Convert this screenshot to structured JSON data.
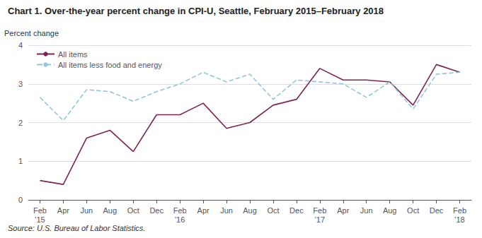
{
  "chart_data": {
    "type": "line",
    "title": "Chart 1. Over-the-year percent change in CPI-U, Seattle, February 2015–February 2018",
    "ylabel": "Percent change",
    "annotations": [
      "Source: U.S. Bureau of Labor Statistics."
    ],
    "categories": [
      "Feb\n'15",
      "Apr",
      "Jun",
      "Aug",
      "Oct",
      "Dec",
      "Feb\n'16",
      "Apr",
      "Jun",
      "Aug",
      "Oct",
      "Dec",
      "Feb\n'17",
      "Apr",
      "Jun",
      "Aug",
      "Oct",
      "Dec",
      "Feb\n'18"
    ],
    "series": [
      {
        "name": "All items",
        "color": "#7b2452",
        "line_style": "solid",
        "values": [
          0.5,
          0.4,
          1.6,
          1.8,
          1.25,
          2.2,
          2.2,
          2.5,
          1.85,
          2.0,
          2.45,
          2.6,
          3.4,
          3.1,
          3.1,
          3.05,
          2.45,
          3.5,
          3.3
        ]
      },
      {
        "name": "All items less food and energy",
        "color": "#92c5de",
        "line_style": "dashed",
        "values": [
          2.65,
          2.05,
          2.85,
          2.8,
          2.55,
          2.8,
          3.0,
          3.3,
          3.05,
          3.25,
          2.6,
          3.1,
          3.05,
          3.0,
          2.65,
          3.05,
          2.35,
          3.25,
          3.3
        ]
      }
    ],
    "ylim": [
      0.0,
      4.0
    ],
    "yticks": [
      0,
      1,
      2,
      3,
      4
    ],
    "grid": true,
    "legend": "upper left"
  }
}
